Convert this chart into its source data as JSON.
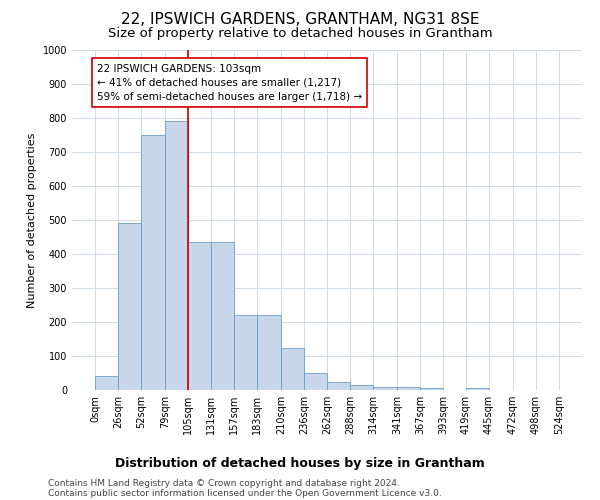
{
  "title": "22, IPSWICH GARDENS, GRANTHAM, NG31 8SE",
  "subtitle": "Size of property relative to detached houses in Grantham",
  "xlabel": "Distribution of detached houses by size in Grantham",
  "ylabel": "Number of detached properties",
  "bar_values": [
    40,
    490,
    750,
    790,
    435,
    435,
    220,
    220,
    125,
    50,
    25,
    15,
    10,
    10,
    5,
    0,
    5,
    0,
    0,
    0
  ],
  "bin_edges": [
    0,
    26,
    52,
    79,
    105,
    131,
    157,
    183,
    210,
    236,
    262,
    288,
    314,
    341,
    367,
    393,
    419,
    445,
    472,
    498,
    524
  ],
  "bar_color": "#c8d8ea",
  "bar_edge_color": "#6a9fc8",
  "property_line_x": 105,
  "property_line_color": "#cc0000",
  "annotation_text": "22 IPSWICH GARDENS: 103sqm\n← 41% of detached houses are smaller (1,217)\n59% of semi-detached houses are larger (1,718) →",
  "annotation_box_color": "#ffffff",
  "annotation_box_edge_color": "#cc0000",
  "ylim": [
    0,
    1000
  ],
  "yticks": [
    0,
    100,
    200,
    300,
    400,
    500,
    600,
    700,
    800,
    900,
    1000
  ],
  "grid_color": "#c8d4e4",
  "background_color": "#ffffff",
  "footer_line1": "Contains HM Land Registry data © Crown copyright and database right 2024.",
  "footer_line2": "Contains public sector information licensed under the Open Government Licence v3.0.",
  "title_fontsize": 11,
  "subtitle_fontsize": 9.5,
  "xlabel_fontsize": 9,
  "ylabel_fontsize": 8,
  "tick_fontsize": 7,
  "annotation_fontsize": 7.5,
  "footer_fontsize": 6.5
}
